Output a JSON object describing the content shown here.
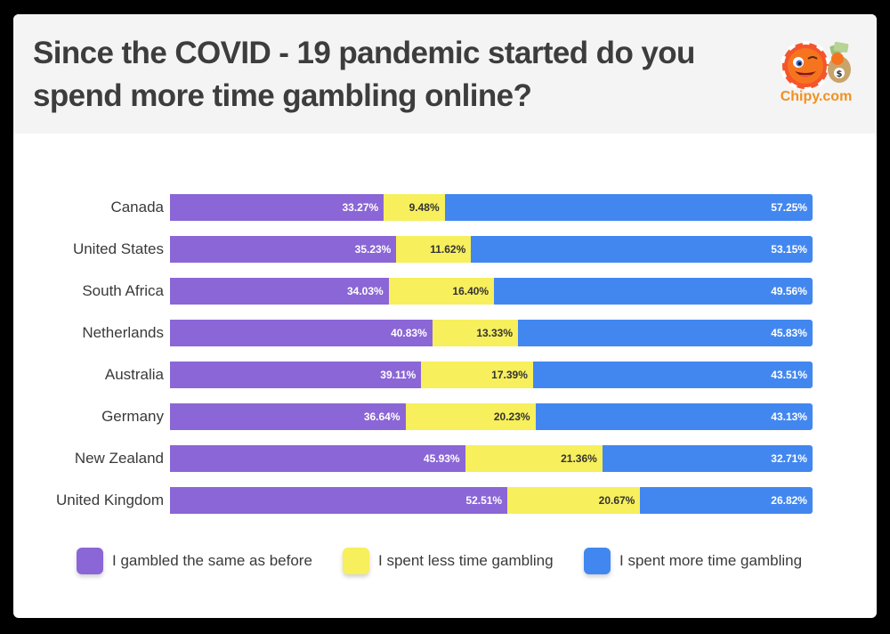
{
  "header": {
    "title": "Since the COVID - 19 pandemic started do you spend more time gambling online?",
    "logo_text": "Chipy.com",
    "logo_icon": "chipy-mascot-icon"
  },
  "colors": {
    "same": "#8b66d6",
    "less": "#f7ef5c",
    "more": "#4287f0",
    "header_bg": "#f4f4f4",
    "brand_orange": "#f2901e"
  },
  "legend": [
    {
      "key": "same",
      "label": "I gambled the same as before"
    },
    {
      "key": "less",
      "label": "I spent less time gambling"
    },
    {
      "key": "more",
      "label": "I spent more time gambling"
    }
  ],
  "rows": [
    {
      "country": "Canada",
      "same": "33.27%",
      "less": "9.48%",
      "more": "57.25%"
    },
    {
      "country": "United States",
      "same": "35.23%",
      "less": "11.62%",
      "more": "53.15%"
    },
    {
      "country": "South Africa",
      "same": "34.03%",
      "less": "16.40%",
      "more": "49.56%"
    },
    {
      "country": "Netherlands",
      "same": "40.83%",
      "less": "13.33%",
      "more": "45.83%"
    },
    {
      "country": "Australia",
      "same": "39.11%",
      "less": "17.39%",
      "more": "43.51%"
    },
    {
      "country": "Germany",
      "same": "36.64%",
      "less": "20.23%",
      "more": "43.13%"
    },
    {
      "country": "New Zealand",
      "same": "45.93%",
      "less": "21.36%",
      "more": "32.71%"
    },
    {
      "country": "United Kingdom",
      "same": "52.51%",
      "less": "20.67%",
      "more": "26.82%"
    }
  ],
  "chart_data": {
    "type": "bar",
    "orientation": "horizontal",
    "stacked": true,
    "normalized": true,
    "title": "Since the COVID - 19 pandemic started do you spend more time gambling online?",
    "xlabel": "",
    "ylabel": "",
    "xlim": [
      0,
      100
    ],
    "grid": false,
    "legend_position": "bottom",
    "categories": [
      "Canada",
      "United States",
      "South Africa",
      "Netherlands",
      "Australia",
      "Germany",
      "New Zealand",
      "United Kingdom"
    ],
    "series": [
      {
        "name": "I gambled the same as before",
        "color": "#8b66d6",
        "values": [
          33.27,
          35.23,
          34.03,
          40.83,
          39.11,
          36.64,
          45.93,
          52.51
        ]
      },
      {
        "name": "I spent less time gambling",
        "color": "#f7ef5c",
        "values": [
          9.48,
          11.62,
          16.4,
          13.33,
          17.39,
          20.23,
          21.36,
          20.67
        ]
      },
      {
        "name": "I spent more time gambling",
        "color": "#4287f0",
        "values": [
          57.25,
          53.15,
          49.56,
          45.83,
          43.51,
          43.13,
          32.71,
          26.82
        ]
      }
    ],
    "data_labels": true,
    "data_label_format": "0.00%"
  }
}
